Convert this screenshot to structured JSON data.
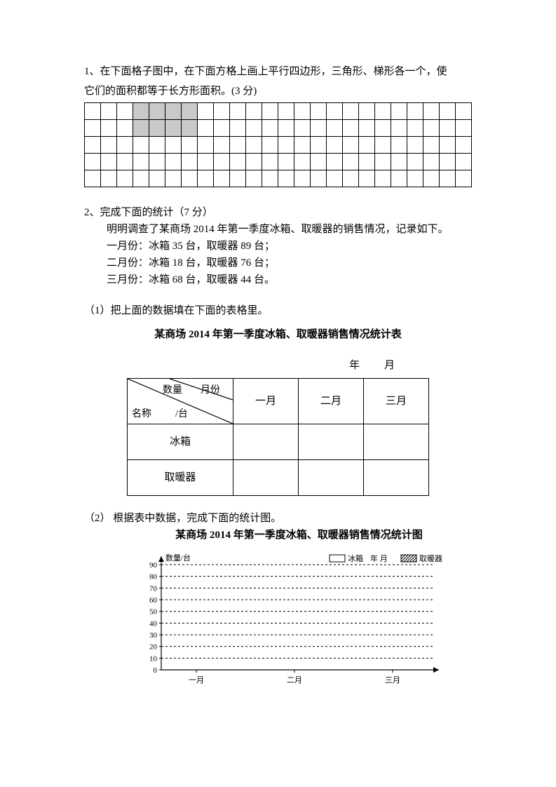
{
  "q1": {
    "text_l1": "1、在下面格子图中，在下面方格上画上平行四边形，三角形、梯形各一个，使",
    "text_l2": "它们的面积都等于长方形面积。(3 分)"
  },
  "grid": {
    "rows": 5,
    "cols": 24,
    "shaded": [
      [
        0,
        3
      ],
      [
        0,
        4
      ],
      [
        0,
        5
      ],
      [
        0,
        6
      ],
      [
        1,
        3
      ],
      [
        1,
        4
      ],
      [
        1,
        5
      ],
      [
        1,
        6
      ]
    ]
  },
  "q2": {
    "heading": "2、完成下面的统计（7 分）",
    "intro": "明明调查了某商场 2014 年第一季度冰箱、取暖器的销售情况，记录如下。",
    "lines": [
      "一月份：冰箱 35 台，取暖器 89 台；",
      "二月份：冰箱 18 台，取暖器 76 台；",
      "三月份：冰箱 68 台，取暖器 44 台。"
    ],
    "sub1": "（1）把上面的数据填在下面的表格里。",
    "table_title": "某商场 2014 年第一季度冰箱、取暖器销售情况统计表",
    "date_label": "年　月",
    "diag": {
      "count": "数量",
      "month": "月份",
      "name": "名称",
      "unit": "/台"
    },
    "months": [
      "一月",
      "二月",
      "三月"
    ],
    "rows": [
      "冰箱",
      "取暖器"
    ],
    "sub2": "（2） 根据表中数据，完成下面的统计图。",
    "chart_title": "某商场 2014 年第一季度冰箱、取暖器销售情况统计图"
  },
  "chart": {
    "y_label": "数量/台",
    "y_ticks": [
      "90",
      "80",
      "70",
      "60",
      "50",
      "40",
      "30",
      "20",
      "10",
      "0"
    ],
    "x_ticks": [
      "一月",
      "二月",
      "三月"
    ],
    "legend1": "冰箱",
    "legend2": "取暖器",
    "legend_rt": "年  月",
    "colors": {
      "axis": "#000",
      "grid": "#000"
    }
  }
}
